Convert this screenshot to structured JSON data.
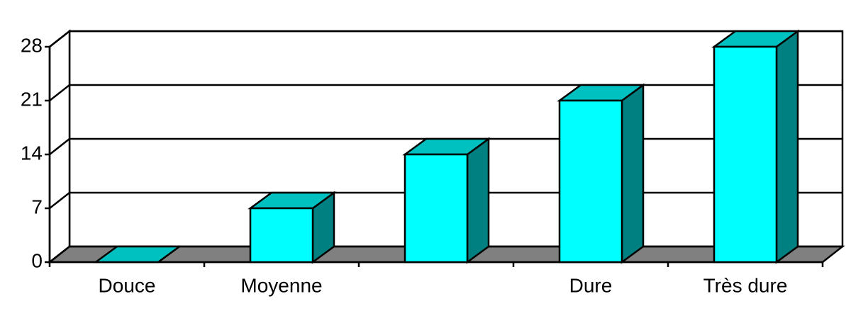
{
  "chart_data": {
    "type": "bar3d",
    "categories": [
      "Douce",
      "Moyenne",
      null,
      "Dure",
      "Très dure"
    ],
    "values": [
      0,
      7,
      14,
      21,
      28
    ],
    "color": "#00ffff",
    "ylim": [
      0,
      28
    ],
    "yticks": [
      0,
      7,
      14,
      21,
      28
    ],
    "grid": true
  }
}
